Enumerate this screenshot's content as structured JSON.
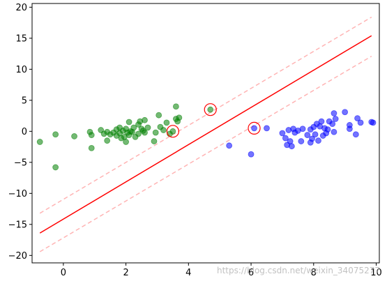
{
  "chart_data": {
    "type": "scatter",
    "title": "",
    "xlabel": "",
    "ylabel": "",
    "xlim": [
      -1.0,
      10.1
    ],
    "ylim": [
      -21.2,
      20.6
    ],
    "xticks": [
      0,
      2,
      4,
      6,
      8,
      10
    ],
    "yticks": [
      -20,
      -15,
      -10,
      -5,
      0,
      5,
      10,
      15,
      20
    ],
    "grid": false,
    "legend": "none",
    "series": [
      {
        "color": "#008000",
        "points": [
          [
            -0.75,
            -1.7
          ],
          [
            -0.25,
            -0.5
          ],
          [
            -0.25,
            -5.8
          ],
          [
            0.35,
            -0.8
          ],
          [
            0.85,
            -0.1
          ],
          [
            0.9,
            -0.6
          ],
          [
            0.9,
            -2.7
          ],
          [
            1.2,
            0.2
          ],
          [
            1.3,
            -0.4
          ],
          [
            1.4,
            -0.1
          ],
          [
            1.4,
            -1.5
          ],
          [
            1.5,
            -0.5
          ],
          [
            1.6,
            -0.2
          ],
          [
            1.7,
            0.3
          ],
          [
            1.7,
            -0.7
          ],
          [
            1.8,
            0.6
          ],
          [
            1.8,
            -0.3
          ],
          [
            1.85,
            -1.1
          ],
          [
            1.9,
            0.1
          ],
          [
            1.95,
            -0.9
          ],
          [
            2.0,
            0.4
          ],
          [
            2.0,
            -1.7
          ],
          [
            2.05,
            -0.2
          ],
          [
            2.1,
            1.5
          ],
          [
            2.1,
            -0.6
          ],
          [
            2.15,
            0.0
          ],
          [
            2.2,
            -0.1
          ],
          [
            2.25,
            0.6
          ],
          [
            2.3,
            -0.9
          ],
          [
            2.4,
            1.1
          ],
          [
            2.4,
            -0.4
          ],
          [
            2.45,
            1.6
          ],
          [
            2.5,
            0.4
          ],
          [
            2.55,
            0.1
          ],
          [
            2.6,
            1.8
          ],
          [
            2.6,
            -0.2
          ],
          [
            2.7,
            0.6
          ],
          [
            2.9,
            -1.6
          ],
          [
            2.95,
            -0.2
          ],
          [
            3.05,
            2.6
          ],
          [
            3.1,
            0.7
          ],
          [
            3.2,
            0.2
          ],
          [
            3.3,
            1.4
          ],
          [
            3.4,
            -0.4
          ],
          [
            3.6,
            4.0
          ],
          [
            3.6,
            2.0
          ],
          [
            3.65,
            1.6
          ],
          [
            3.7,
            2.2
          ],
          [
            3.5,
            0.0
          ],
          [
            4.7,
            3.5
          ]
        ]
      },
      {
        "color": "#0000ff",
        "points": [
          [
            5.3,
            -2.3
          ],
          [
            6.0,
            -3.7
          ],
          [
            6.1,
            0.5
          ],
          [
            6.5,
            0.5
          ],
          [
            7.0,
            -0.3
          ],
          [
            7.1,
            -1.1
          ],
          [
            7.15,
            -2.2
          ],
          [
            7.2,
            0.2
          ],
          [
            7.25,
            -1.6
          ],
          [
            7.3,
            -2.4
          ],
          [
            7.35,
            0.4
          ],
          [
            7.4,
            -0.2
          ],
          [
            7.5,
            0.1
          ],
          [
            7.6,
            -1.6
          ],
          [
            7.65,
            0.4
          ],
          [
            7.8,
            -0.6
          ],
          [
            7.9,
            0.3
          ],
          [
            7.9,
            -1.8
          ],
          [
            7.95,
            -1.2
          ],
          [
            8.0,
            0.7
          ],
          [
            8.05,
            -0.5
          ],
          [
            8.1,
            1.2
          ],
          [
            8.15,
            -1.5
          ],
          [
            8.2,
            0.8
          ],
          [
            8.25,
            1.6
          ],
          [
            8.3,
            -0.7
          ],
          [
            8.35,
            0.5
          ],
          [
            8.4,
            -0.3
          ],
          [
            8.45,
            0.3
          ],
          [
            8.5,
            1.6
          ],
          [
            8.6,
            1.2
          ],
          [
            8.65,
            -0.1
          ],
          [
            8.7,
            2.0
          ],
          [
            8.65,
            2.9
          ],
          [
            9.0,
            3.1
          ],
          [
            9.15,
            0.4
          ],
          [
            9.15,
            1.0
          ],
          [
            9.4,
            2.1
          ],
          [
            9.35,
            -0.5
          ],
          [
            9.5,
            1.4
          ],
          [
            9.85,
            1.5
          ],
          [
            9.9,
            1.4
          ]
        ]
      }
    ],
    "support_vectors": [
      [
        3.5,
        0.0
      ],
      [
        4.7,
        3.5
      ],
      [
        6.1,
        0.5
      ]
    ],
    "decision_boundary": {
      "x": [
        -0.75,
        9.85
      ],
      "y": [
        -16.4,
        15.4
      ],
      "color": "#ff0000",
      "style": "solid"
    },
    "margin_lines": [
      {
        "x": [
          -0.75,
          9.85
        ],
        "y": [
          -13.2,
          18.4
        ],
        "color": "#ffb4b4",
        "style": "dashed"
      },
      {
        "x": [
          -0.75,
          9.85
        ],
        "y": [
          -19.4,
          12.1
        ],
        "color": "#ffb4b4",
        "style": "dashed"
      }
    ],
    "watermark": "https://blog.csdn.net/weixin_34075277"
  }
}
